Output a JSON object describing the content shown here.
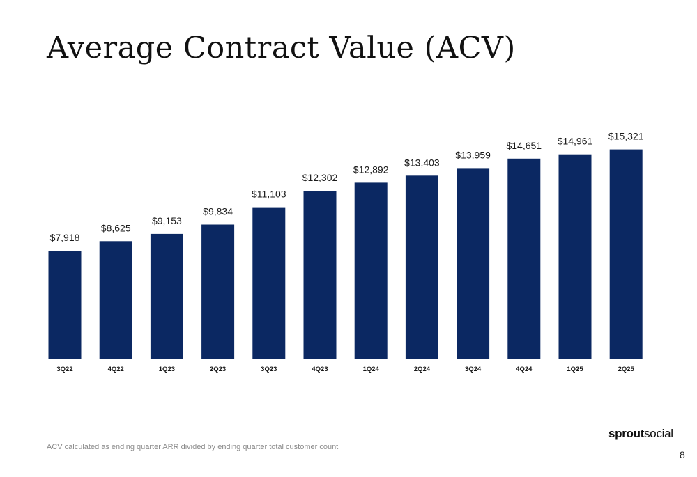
{
  "slide": {
    "title": "Average Contract Value (ACV)",
    "footnote": "ACV calculated as ending quarter ARR divided by ending quarter total customer count",
    "logo": {
      "part1": "sprout",
      "part2": "social"
    },
    "page_number": "8"
  },
  "colors": {
    "bar": "#0b2862",
    "text": "#1a1a1a"
  },
  "chart_data": {
    "type": "bar",
    "categories": [
      "3Q22",
      "4Q22",
      "1Q23",
      "2Q23",
      "3Q23",
      "4Q23",
      "1Q24",
      "2Q24",
      "3Q24",
      "4Q24",
      "1Q25",
      "2Q25"
    ],
    "values": [
      7918,
      8625,
      9153,
      9834,
      11103,
      12302,
      12892,
      13403,
      13959,
      14651,
      14961,
      15321
    ],
    "value_labels": [
      "$7,918",
      "$8,625",
      "$9,153",
      "$9,834",
      "$11,103",
      "$12,302",
      "$12,892",
      "$13,403",
      "$13,959",
      "$14,651",
      "$14,961",
      "$15,321"
    ],
    "title": "",
    "xlabel": "",
    "ylabel": "",
    "y_axis_shown": false,
    "grid": false,
    "legend": "none"
  }
}
